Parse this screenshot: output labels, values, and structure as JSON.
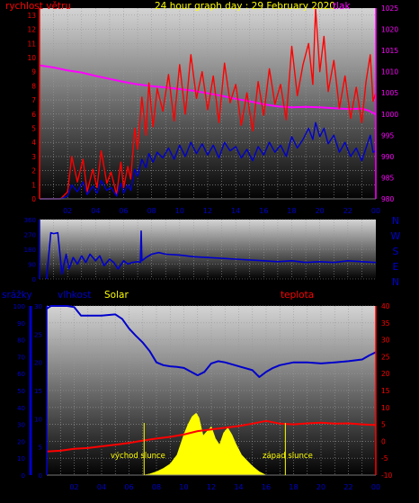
{
  "chart_data": [
    {
      "type": "line",
      "title": "24 hour graph day : 29 February 2020",
      "ylabel_left": "rychlost větru",
      "ylabel_right": "tlak",
      "x_ticks": [
        "02",
        "04",
        "06",
        "08",
        "10",
        "12",
        "14",
        "16",
        "18",
        "20",
        "22",
        "00"
      ],
      "x_range": [
        0,
        24
      ],
      "y_left": {
        "ticks": [
          "0",
          "1",
          "2",
          "3",
          "4",
          "5",
          "6",
          "7",
          "8",
          "9",
          "10",
          "11",
          "12",
          "13"
        ],
        "range": [
          0,
          13.5
        ]
      },
      "y_right": {
        "ticks": [
          "980",
          "985",
          "990",
          "995",
          "1000",
          "1005",
          "1010",
          "1015",
          "1020",
          "1025"
        ],
        "range": [
          980,
          1025
        ]
      },
      "grid": true,
      "colors": {
        "gust": "#ff0000",
        "average": "#0000cc",
        "pressure": "#ff00ff",
        "left_axis": "#ff0000",
        "right_axis": "#ff00ff",
        "title": "#ffff00"
      },
      "series": [
        {
          "key": "pressure",
          "axis": "right",
          "x": [
            0,
            1,
            2,
            3,
            4,
            5,
            6,
            7,
            8,
            9,
            10,
            11,
            12,
            13,
            14,
            15,
            16,
            17,
            18,
            19,
            20,
            21,
            22,
            23,
            23.5,
            24
          ],
          "y": [
            1011.5,
            1011,
            1010.3,
            1009.8,
            1009,
            1008.3,
            1007.6,
            1007,
            1006.6,
            1006.3,
            1005.9,
            1005.5,
            1004.9,
            1004.3,
            1003.6,
            1003,
            1002.3,
            1001.8,
            1001.6,
            1001.7,
            1001.6,
            1001.4,
            1001.2,
            1001.3,
            1000.8,
            999.9
          ]
        },
        {
          "key": "gust",
          "axis": "left",
          "x": [
            0,
            1.5,
            2.0,
            2.3,
            2.7,
            3.1,
            3.4,
            3.8,
            4.1,
            4.4,
            4.8,
            5.1,
            5.5,
            5.8,
            6.0,
            6.3,
            6.5,
            6.8,
            7.0,
            7.3,
            7.6,
            7.8,
            8.1,
            8.4,
            8.8,
            9.2,
            9.6,
            10.0,
            10.4,
            10.8,
            11.2,
            11.6,
            12.0,
            12.4,
            12.8,
            13.2,
            13.6,
            14.0,
            14.4,
            14.8,
            15.2,
            15.6,
            16.0,
            16.4,
            16.8,
            17.2,
            17.6,
            18.0,
            18.4,
            18.8,
            19.2,
            19.5,
            19.7,
            20.0,
            20.3,
            20.6,
            21.0,
            21.4,
            21.8,
            22.2,
            22.6,
            23.0,
            23.3,
            23.6,
            23.8,
            24.0
          ],
          "y": [
            0,
            0,
            0.5,
            3.0,
            1.2,
            2.8,
            0.5,
            2.1,
            0.8,
            3.4,
            1.1,
            1.9,
            0.3,
            2.6,
            0.8,
            2.3,
            1.4,
            5.0,
            3.5,
            7.2,
            4.5,
            8.2,
            5.1,
            7.8,
            6.2,
            8.8,
            5.5,
            9.5,
            6.0,
            10.2,
            7.1,
            9.0,
            6.3,
            8.7,
            5.4,
            9.6,
            6.8,
            8.1,
            5.2,
            7.5,
            4.8,
            8.3,
            5.9,
            9.2,
            6.7,
            8.1,
            5.6,
            10.8,
            7.3,
            9.5,
            11.0,
            8.1,
            13.5,
            9.0,
            11.5,
            7.6,
            9.8,
            6.4,
            8.7,
            5.7,
            7.9,
            5.4,
            8.3,
            10.2,
            6.9,
            7.5
          ]
        },
        {
          "key": "average",
          "axis": "left",
          "x": [
            0,
            1.5,
            2.0,
            2.3,
            2.7,
            3.1,
            3.4,
            3.8,
            4.1,
            4.4,
            4.8,
            5.1,
            5.5,
            5.8,
            6.0,
            6.3,
            6.5,
            6.8,
            7.0,
            7.3,
            7.6,
            7.8,
            8.1,
            8.4,
            8.8,
            9.2,
            9.6,
            10.0,
            10.4,
            10.8,
            11.2,
            11.6,
            12.0,
            12.4,
            12.8,
            13.2,
            13.6,
            14.0,
            14.4,
            14.8,
            15.2,
            15.6,
            16.0,
            16.4,
            16.8,
            17.2,
            17.6,
            18.0,
            18.4,
            18.8,
            19.2,
            19.5,
            19.7,
            20.0,
            20.3,
            20.6,
            21.0,
            21.4,
            21.8,
            22.2,
            22.6,
            23.0,
            23.3,
            23.6,
            23.8,
            24.0
          ],
          "y": [
            0,
            0,
            0.2,
            1.0,
            0.5,
            1.2,
            0.3,
            0.9,
            0.4,
            1.3,
            0.6,
            0.8,
            0.2,
            1.1,
            0.4,
            1.0,
            0.6,
            2.1,
            1.6,
            2.8,
            2.2,
            3.2,
            2.6,
            3.3,
            2.9,
            3.6,
            2.8,
            3.8,
            3.0,
            4.0,
            3.2,
            3.9,
            3.1,
            3.8,
            2.9,
            4.0,
            3.4,
            3.7,
            2.9,
            3.5,
            2.7,
            3.7,
            3.1,
            4.0,
            3.3,
            3.8,
            3.0,
            4.4,
            3.6,
            4.2,
            5.0,
            4.2,
            5.4,
            4.4,
            5.0,
            3.9,
            4.5,
            3.3,
            4.0,
            3.0,
            3.6,
            2.7,
            3.6,
            4.5,
            3.3,
            3.4
          ]
        }
      ]
    },
    {
      "type": "line",
      "y_ticks": [
        "360",
        "270",
        "180",
        "90",
        "0"
      ],
      "y_range": [
        0,
        360
      ],
      "compass_labels": [
        "N",
        "W",
        "S",
        "E",
        "N"
      ],
      "x_range": [
        0,
        24
      ],
      "grid": true,
      "colors": {
        "direction": "#0000cc",
        "compass": "#0000cc"
      },
      "series": [
        {
          "key": "direction",
          "x": [
            0.5,
            0.8,
            1.0,
            1.3,
            1.6,
            1.9,
            2.1,
            2.4,
            2.7,
            3.0,
            3.3,
            3.6,
            4.0,
            4.3,
            4.6,
            5.0,
            5.3,
            5.6,
            6.0,
            6.3,
            6.6,
            7.0,
            7.2,
            7.25,
            7.3,
            7.6,
            8.0,
            8.5,
            9.0,
            10.0,
            11.0,
            12.0,
            13.0,
            14.0,
            15.0,
            16.0,
            17.0,
            18.0,
            19.0,
            20.0,
            21.0,
            22.0,
            23.0,
            24.0
          ],
          "y": [
            0,
            280,
            275,
            280,
            30,
            150,
            60,
            130,
            90,
            140,
            100,
            150,
            110,
            140,
            80,
            120,
            100,
            60,
            110,
            90,
            100,
            105,
            100,
            290,
            110,
            130,
            150,
            160,
            150,
            145,
            135,
            130,
            125,
            120,
            115,
            110,
            105,
            110,
            100,
            105,
            100,
            110,
            105,
            100
          ]
        }
      ]
    },
    {
      "type": "line",
      "ylabel_left": "srážky",
      "ylabel_humidity": "vlhkost",
      "ylabel_solar": "Solar",
      "ylabel_right": "teplota",
      "annotations": [
        "východ slunce",
        "západ slunce"
      ],
      "sunrise_hour": 7.1,
      "sunset_hour": 17.4,
      "x_ticks": [
        "02",
        "04",
        "06",
        "08",
        "10",
        "12",
        "14",
        "16",
        "18",
        "20",
        "22",
        "00"
      ],
      "x_range": [
        0,
        24
      ],
      "y_rain": {
        "ticks": [
          "0",
          "10",
          "20",
          "30",
          "40",
          "50",
          "60",
          "70",
          "80",
          "90",
          "100"
        ],
        "range": [
          0,
          100
        ]
      },
      "y_humidity": {
        "ticks": [
          "0",
          "5",
          "10",
          "15",
          "20",
          "25",
          "30"
        ],
        "range": [
          0,
          30
        ]
      },
      "y_temperature": {
        "ticks": [
          "-10",
          "-5",
          "0",
          "5",
          "10",
          "15",
          "20",
          "25",
          "30",
          "35",
          "40"
        ],
        "range": [
          -10,
          40
        ]
      },
      "grid": true,
      "colors": {
        "humidity": "#0000cc",
        "temperature": "#ff0000",
        "solar": "#ffff00",
        "rain_axis": "#0000cc",
        "temp_axis": "#ff0000",
        "solar_label": "#ffff00"
      },
      "series": [
        {
          "key": "humidity",
          "axis": "humidity",
          "x": [
            0,
            0.3,
            1.5,
            2.0,
            2.5,
            3.0,
            4.0,
            5.0,
            5.5,
            6.0,
            6.5,
            7.0,
            7.5,
            8.0,
            8.5,
            9.0,
            9.5,
            10.0,
            11.0,
            11.5,
            12.0,
            12.5,
            13.0,
            14.0,
            15.0,
            15.5,
            16.0,
            16.5,
            17.0,
            18.0,
            19.0,
            20.0,
            21.0,
            22.0,
            23.0,
            23.5,
            24.0
          ],
          "y": [
            29.5,
            30,
            30,
            29.8,
            28.3,
            28.3,
            28.3,
            28.5,
            27.7,
            26,
            24.7,
            23.5,
            22,
            20,
            19.5,
            19.3,
            19.2,
            19.0,
            17.7,
            18.3,
            19.8,
            20.2,
            20.0,
            19.3,
            18.6,
            17.4,
            18.3,
            19.0,
            19.5,
            20.0,
            20.0,
            19.8,
            20.0,
            20.2,
            20.5,
            21.2,
            21.8
          ]
        },
        {
          "key": "temperature",
          "axis": "temperature",
          "x": [
            0,
            1,
            2,
            3,
            4,
            5,
            6,
            7,
            8,
            9,
            10,
            11,
            12,
            13,
            14,
            15,
            16,
            17,
            18,
            19,
            20,
            21,
            22,
            23,
            24
          ],
          "y": [
            -3,
            -2.8,
            -2.2,
            -2,
            -1.5,
            -1,
            -0.5,
            0.2,
            0.8,
            1.3,
            2,
            3,
            3.5,
            4,
            4.5,
            5.2,
            6,
            5.2,
            5,
            5.3,
            5.5,
            5.2,
            5.3,
            5,
            4.8
          ]
        },
        {
          "key": "solar",
          "axis": "humidity",
          "x": [
            7.0,
            7.5,
            8.0,
            8.5,
            9.0,
            9.5,
            10.0,
            10.3,
            10.6,
            10.9,
            11.1,
            11.4,
            11.7,
            12.0,
            12.3,
            12.6,
            12.9,
            13.2,
            13.5,
            13.8,
            14.2,
            14.6,
            15.0,
            15.5,
            16.0
          ],
          "y": [
            0,
            0.2,
            0.6,
            1.2,
            2.0,
            3.6,
            7.2,
            9.0,
            10.4,
            11.0,
            10.2,
            7.0,
            7.8,
            8.6,
            6.5,
            5.4,
            7.5,
            8.4,
            7.2,
            5.5,
            3.6,
            2.6,
            1.6,
            0.6,
            0
          ]
        }
      ]
    }
  ]
}
